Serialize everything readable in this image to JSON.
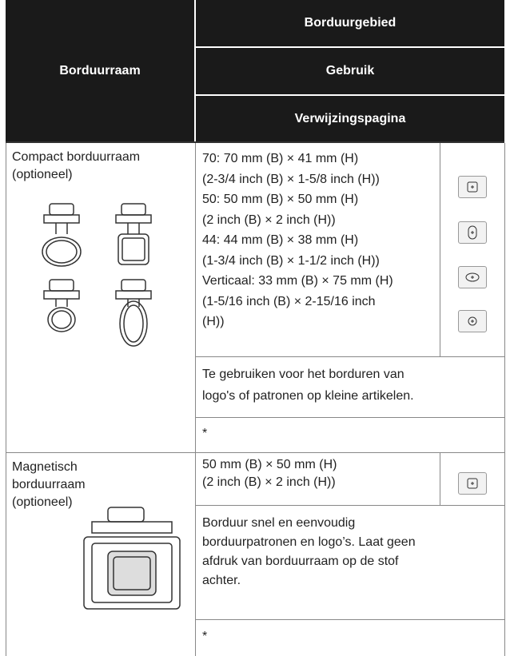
{
  "header": {
    "frame": "Borduurraam",
    "area": "Borduurgebied",
    "usage": "Gebruik",
    "reference": "Verwijzingspagina"
  },
  "rows": [
    {
      "frame": [
        "Compact borduurraam",
        "(optioneel)"
      ],
      "area": [
        "70: 70 mm (B) × 41 mm (H)",
        "(2-3/4 inch (B) × 1-5/8 inch (H))",
        "50: 50 mm (B) × 50 mm (H)",
        "(2 inch (B) × 2 inch (H))",
        "44: 44 mm (B) × 38 mm (H)",
        "(1-3/4 inch (B) × 1-1/2 inch (H))",
        "Verticaal: 33 mm (B) × 75 mm (H)",
        "(1-5/16 inch (B) × 2-15/16 inch",
        "(H))"
      ],
      "usage": [
        "Te gebruiken voor het borduren van",
        "logo's of patronen op kleine artikelen."
      ],
      "reference": "*"
    },
    {
      "frame": [
        "Magnetisch",
        "borduurraam",
        "(optioneel)"
      ],
      "area": [
        "50 mm (B) × 50 mm (H)",
        "(2 inch (B) × 2 inch (H))"
      ],
      "usage": [
        "Borduur snel en eenvoudig",
        "borduurpatronen en logo’s. Laat geen",
        "afdruk van borduurraam op de stof",
        "achter."
      ],
      "reference": "*"
    }
  ]
}
